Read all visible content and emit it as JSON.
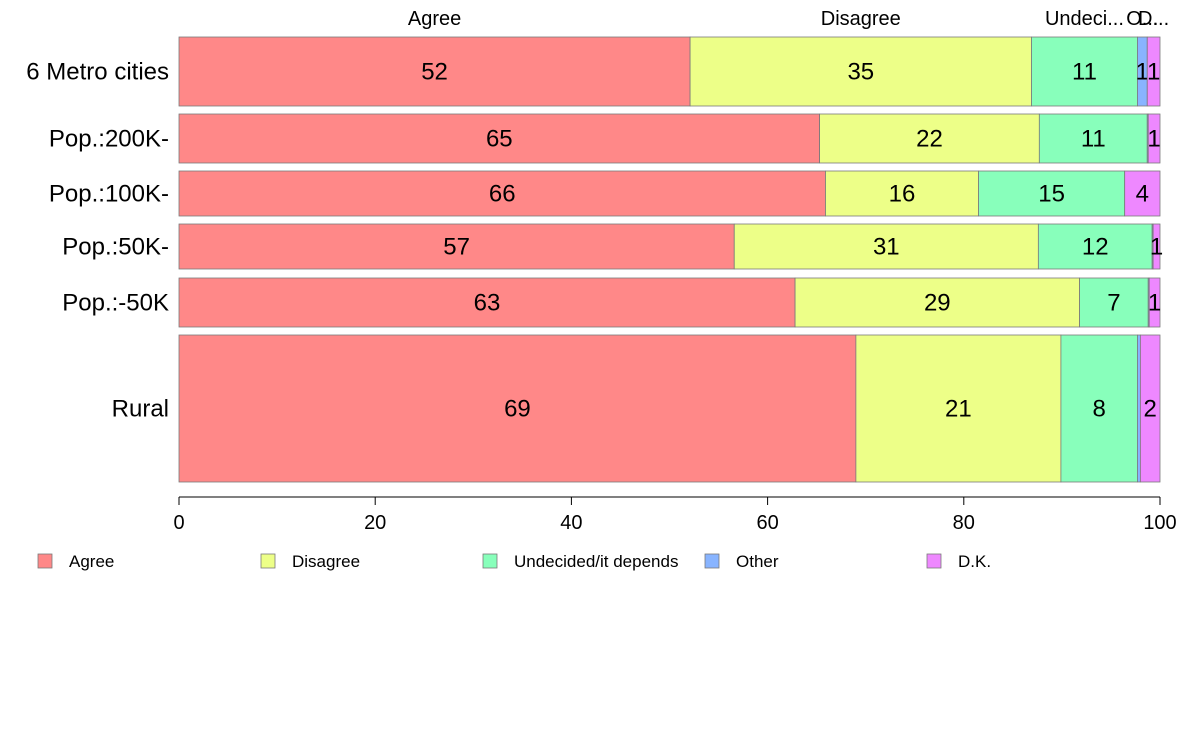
{
  "chart_data": {
    "type": "bar",
    "orientation": "horizontal",
    "stacked": true,
    "title": "",
    "xlabel": "",
    "ylabel": "",
    "xlim": [
      0,
      100
    ],
    "xticks": [
      0,
      20,
      40,
      60,
      80,
      100
    ],
    "grid": false,
    "legend_position": "bottom",
    "categories": [
      "6 Metro cities",
      "Pop.:200K-",
      "Pop.:100K-",
      "Pop.:50K-",
      "Pop.:-50K",
      "Rural"
    ],
    "series": [
      {
        "name": "Agree",
        "color": "#ff8888",
        "values": [
          52.1,
          65.3,
          65.9,
          56.6,
          62.8,
          69.0
        ],
        "labels": [
          "52",
          "65",
          "66",
          "57",
          "63",
          "69"
        ]
      },
      {
        "name": "Disagree",
        "color": "#edff88",
        "values": [
          34.8,
          22.4,
          15.6,
          31.0,
          29.0,
          20.9
        ],
        "labels": [
          "35",
          "22",
          "16",
          "31",
          "29",
          "21"
        ]
      },
      {
        "name": "Undecided/it depends",
        "color": "#88ffbb",
        "values": [
          10.8,
          11.0,
          14.9,
          11.6,
          7.0,
          7.8
        ],
        "labels": [
          "11",
          "11",
          "15",
          "12",
          "7",
          "8"
        ]
      },
      {
        "name": "Other",
        "color": "#88b4ff",
        "values": [
          1.0,
          0.1,
          0.0,
          0.1,
          0.1,
          0.3
        ],
        "labels": [
          "1",
          "",
          "",
          "",
          "",
          ""
        ]
      },
      {
        "name": "D.K.",
        "color": "#ee88ff",
        "values": [
          1.3,
          1.2,
          3.6,
          0.7,
          1.1,
          2.0
        ],
        "labels": [
          "1",
          "1",
          "4",
          "1",
          "1",
          "2"
        ]
      }
    ],
    "top_labels": [
      "Agree",
      "Disagree",
      "Undeci...",
      "O...",
      "D..."
    ]
  }
}
